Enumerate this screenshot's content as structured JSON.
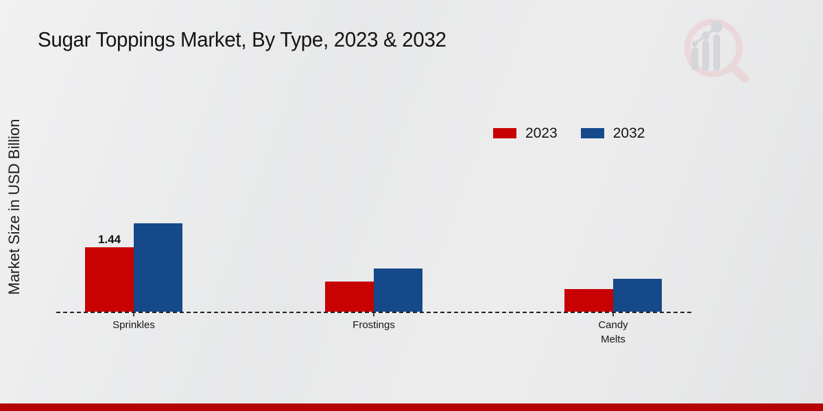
{
  "page": {
    "watermark_icon": "magnifier-bar-chart-logo"
  },
  "chart_data": {
    "type": "bar",
    "title": "Sugar Toppings Market, By Type, 2023 & 2032",
    "ylabel": "Market Size in USD Billion",
    "xlabel": "",
    "categories": [
      "Sprinkles",
      "Frostings",
      "Candy Melts"
    ],
    "series": [
      {
        "name": "2023",
        "color": "#c80202",
        "values": [
          1.44,
          0.67,
          0.51
        ],
        "labels": [
          "1.44",
          "",
          ""
        ]
      },
      {
        "name": "2032",
        "color": "#15498a",
        "values": [
          1.98,
          0.96,
          0.73
        ],
        "labels": [
          "",
          "",
          ""
        ]
      }
    ],
    "legend_position": "top-right",
    "grid": false,
    "baseline_style": "dashed",
    "ylim": [
      0,
      5
    ]
  },
  "colors": {
    "bar_red": "#c80202",
    "bar_blue": "#15498a",
    "footer_bar": "#b50404"
  }
}
